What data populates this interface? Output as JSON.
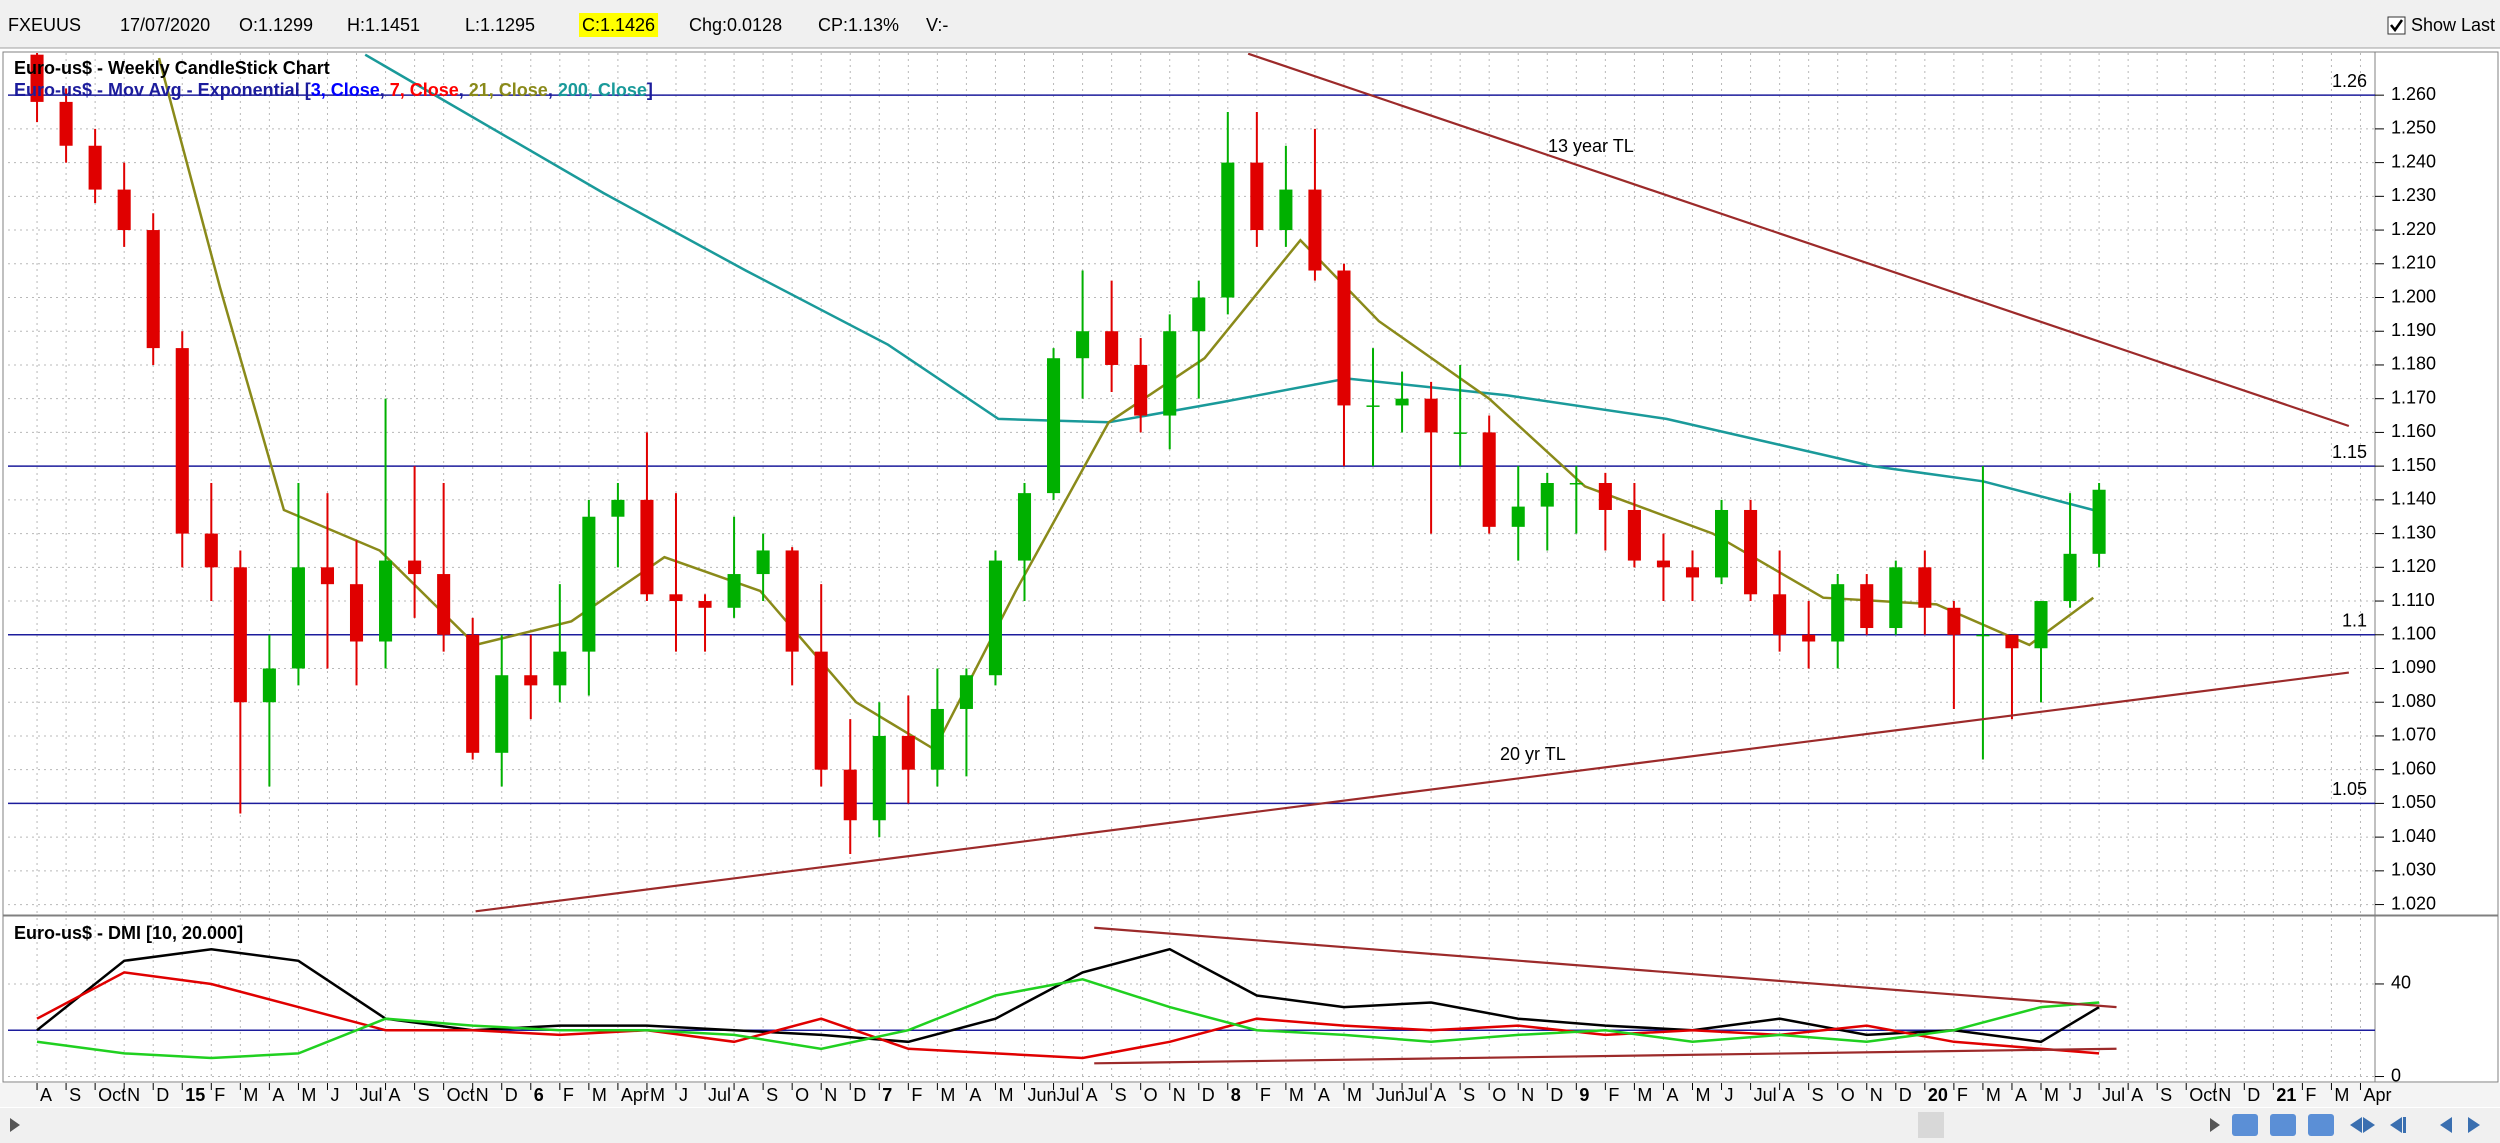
{
  "toolbar": {
    "symbol": "FXEUUS",
    "date": "17/07/2020",
    "open": "O:1.1299",
    "high": "H:1.1451",
    "low": "L:1.1295",
    "close": "C:1.1426",
    "change": "Chg:0.0128",
    "change_pct": "CP:1.13%",
    "volume": "V:-",
    "show_last": "Show Last"
  },
  "chart_data": [
    {
      "type": "candlestick",
      "title": "Euro-us$ - Weekly CandleStick Chart",
      "indicator_legend": [
        {
          "text": "Euro-us$ - Mov Avg - Exponential [",
          "color": "#1c1c9c"
        },
        {
          "text": "3, Close",
          "color": "#0000ff"
        },
        {
          "text": ", ",
          "color": "#1c1c9c"
        },
        {
          "text": "7, Close",
          "color": "#ff0000"
        },
        {
          "text": ", ",
          "color": "#1c1c9c"
        },
        {
          "text": "21, Close",
          "color": "#8a8a1a"
        },
        {
          "text": ", ",
          "color": "#1c1c9c"
        },
        {
          "text": "200, Close",
          "color": "#1a9a9a"
        },
        {
          "text": "]",
          "color": "#1c1c9c"
        }
      ],
      "xlim": [
        -1,
        80.5
      ],
      "ylim": [
        1.0175,
        1.2725
      ],
      "yticks": [
        {
          "value": 1.02,
          "label": "1.020"
        },
        {
          "value": 1.03,
          "label": "1.030"
        },
        {
          "value": 1.04,
          "label": "1.040"
        },
        {
          "value": 1.05,
          "label": "1.050"
        },
        {
          "value": 1.06,
          "label": "1.060"
        },
        {
          "value": 1.07,
          "label": "1.070"
        },
        {
          "value": 1.08,
          "label": "1.080"
        },
        {
          "value": 1.09,
          "label": "1.090"
        },
        {
          "value": 1.1,
          "label": "1.100"
        },
        {
          "value": 1.11,
          "label": "1.110"
        },
        {
          "value": 1.12,
          "label": "1.120"
        },
        {
          "value": 1.13,
          "label": "1.130"
        },
        {
          "value": 1.14,
          "label": "1.140"
        },
        {
          "value": 1.15,
          "label": "1.150"
        },
        {
          "value": 1.16,
          "label": "1.160"
        },
        {
          "value": 1.17,
          "label": "1.170"
        },
        {
          "value": 1.18,
          "label": "1.180"
        },
        {
          "value": 1.19,
          "label": "1.190"
        },
        {
          "value": 1.2,
          "label": "1.200"
        },
        {
          "value": 1.21,
          "label": "1.210"
        },
        {
          "value": 1.22,
          "label": "1.220"
        },
        {
          "value": 1.23,
          "label": "1.230"
        },
        {
          "value": 1.24,
          "label": "1.240"
        },
        {
          "value": 1.25,
          "label": "1.250"
        },
        {
          "value": 1.26,
          "label": "1.260"
        }
      ],
      "grid": true,
      "up_color": "#00b000",
      "down_color": "#e00000",
      "x": [
        0,
        1,
        2,
        3,
        4,
        5,
        6,
        7,
        8,
        9,
        10,
        11,
        12,
        13,
        14,
        15,
        16,
        17,
        18,
        19,
        20,
        21,
        22,
        23,
        24,
        25,
        26,
        27,
        28,
        29,
        30,
        31,
        32,
        33,
        34,
        35,
        36,
        37,
        38,
        39,
        40,
        41,
        42,
        43,
        44,
        45,
        46,
        47,
        48,
        49,
        50,
        51,
        52,
        53,
        54,
        55,
        56,
        57,
        58,
        59,
        60,
        61,
        62,
        63,
        64,
        65,
        66,
        67,
        68,
        69,
        70,
        71
      ],
      "open": [
        1.272,
        1.258,
        1.245,
        1.232,
        1.22,
        1.185,
        1.13,
        1.12,
        1.08,
        1.09,
        1.12,
        1.115,
        1.098,
        1.122,
        1.118,
        1.1,
        1.065,
        1.088,
        1.085,
        1.095,
        1.135,
        1.14,
        1.112,
        1.11,
        1.108,
        1.118,
        1.125,
        1.095,
        1.06,
        1.045,
        1.07,
        1.06,
        1.078,
        1.088,
        1.122,
        1.142,
        1.182,
        1.19,
        1.18,
        1.165,
        1.19,
        1.2,
        1.24,
        1.22,
        1.232,
        1.208,
        1.168,
        1.168,
        1.17,
        1.16,
        1.16,
        1.132,
        1.138,
        1.145,
        1.145,
        1.137,
        1.122,
        1.12,
        1.117,
        1.137,
        1.112,
        1.1,
        1.098,
        1.115,
        1.102,
        1.12,
        1.108,
        1.1,
        1.1,
        1.096,
        1.11,
        1.124
      ],
      "high": [
        1.28,
        1.262,
        1.25,
        1.24,
        1.225,
        1.19,
        1.145,
        1.125,
        1.1,
        1.145,
        1.142,
        1.128,
        1.17,
        1.15,
        1.145,
        1.105,
        1.1,
        1.1,
        1.115,
        1.14,
        1.145,
        1.16,
        1.142,
        1.112,
        1.135,
        1.13,
        1.126,
        1.115,
        1.075,
        1.08,
        1.082,
        1.09,
        1.09,
        1.125,
        1.145,
        1.185,
        1.208,
        1.205,
        1.188,
        1.195,
        1.205,
        1.255,
        1.255,
        1.245,
        1.25,
        1.21,
        1.185,
        1.178,
        1.175,
        1.18,
        1.165,
        1.15,
        1.148,
        1.15,
        1.148,
        1.145,
        1.13,
        1.125,
        1.14,
        1.14,
        1.125,
        1.11,
        1.118,
        1.118,
        1.122,
        1.125,
        1.11,
        1.15,
        1.1,
        1.11,
        1.142,
        1.145
      ],
      "low": [
        1.252,
        1.24,
        1.228,
        1.215,
        1.18,
        1.12,
        1.11,
        1.047,
        1.055,
        1.085,
        1.09,
        1.085,
        1.09,
        1.105,
        1.095,
        1.063,
        1.055,
        1.075,
        1.08,
        1.082,
        1.12,
        1.11,
        1.095,
        1.095,
        1.105,
        1.11,
        1.085,
        1.055,
        1.035,
        1.04,
        1.05,
        1.055,
        1.058,
        1.085,
        1.11,
        1.14,
        1.17,
        1.172,
        1.16,
        1.155,
        1.17,
        1.195,
        1.215,
        1.215,
        1.205,
        1.15,
        1.15,
        1.16,
        1.13,
        1.15,
        1.13,
        1.122,
        1.125,
        1.13,
        1.125,
        1.12,
        1.11,
        1.11,
        1.115,
        1.11,
        1.095,
        1.09,
        1.09,
        1.1,
        1.1,
        1.1,
        1.078,
        1.063,
        1.075,
        1.08,
        1.108,
        1.12
      ],
      "close": [
        1.258,
        1.245,
        1.232,
        1.22,
        1.185,
        1.13,
        1.12,
        1.08,
        1.09,
        1.12,
        1.115,
        1.098,
        1.122,
        1.118,
        1.1,
        1.065,
        1.088,
        1.085,
        1.095,
        1.135,
        1.14,
        1.112,
        1.11,
        1.108,
        1.118,
        1.125,
        1.095,
        1.06,
        1.045,
        1.07,
        1.06,
        1.078,
        1.088,
        1.122,
        1.142,
        1.182,
        1.19,
        1.18,
        1.165,
        1.19,
        1.2,
        1.24,
        1.22,
        1.232,
        1.208,
        1.168,
        1.168,
        1.17,
        1.16,
        1.16,
        1.132,
        1.138,
        1.145,
        1.145,
        1.137,
        1.122,
        1.12,
        1.117,
        1.137,
        1.112,
        1.1,
        1.098,
        1.115,
        1.102,
        1.12,
        1.108,
        1.1,
        1.1,
        1.096,
        1.11,
        1.124,
        1.143
      ],
      "series": [
        {
          "color": "#1a9a9a",
          "x": [
            11.3,
            19.5,
            24.4,
            29.3,
            33.1,
            36.9,
            40.8,
            45.1,
            50.6,
            56.1,
            63.2,
            67,
            70.8
          ],
          "values": [
            1.272,
            1.231,
            1.208,
            1.186,
            1.164,
            1.163,
            1.169,
            1.176,
            1.171,
            1.164,
            1.15,
            1.1455,
            1.137
          ]
        },
        {
          "color": "#8a8a1a",
          "x": [
            4.2,
            6.3,
            8.5,
            11.8,
            15.1,
            18.4,
            21.6,
            24.9,
            28.2,
            30.9,
            33.7,
            36.9,
            40.2,
            43.5,
            46.2,
            50,
            53.3,
            57.7,
            61.5,
            65.4,
            68.6,
            70.8
          ],
          "values": [
            1.271,
            1.203,
            1.137,
            1.125,
            1.097,
            1.104,
            1.123,
            1.113,
            1.08,
            1.066,
            1.113,
            1.163,
            1.182,
            1.217,
            1.193,
            1.17,
            1.144,
            1.13,
            1.111,
            1.109,
            1.097,
            1.111
          ]
        }
      ],
      "levels": [
        {
          "value": 1.26,
          "label": "1.26"
        },
        {
          "value": 1.15,
          "label": "1.15"
        },
        {
          "value": 1.1,
          "label": "1.1"
        },
        {
          "value": 1.05,
          "label": "1.05"
        }
      ],
      "level_color": "#1c1c9c",
      "trendlines": [
        {
          "color": "#9c2a2a",
          "x": [
            41.7,
            79.6
          ],
          "values": [
            1.2723,
            1.1619
          ]
        },
        {
          "color": "#9c2a2a",
          "x": [
            15.1,
            79.6
          ],
          "values": [
            1.018,
            1.0888
          ]
        }
      ],
      "annotations": [
        "13 year TL",
        "20 yr TL"
      ]
    },
    {
      "type": "line",
      "title": "Euro-us$ - DMI [10, 20.000]",
      "xlim": [
        -1,
        80.5
      ],
      "xticks": [
        {
          "value": 0,
          "label": "A"
        },
        {
          "value": 1,
          "label": "S"
        },
        {
          "value": 2,
          "label": "Oct"
        },
        {
          "value": 3,
          "label": "N"
        },
        {
          "value": 4,
          "label": "D"
        },
        {
          "value": 5,
          "label": "15"
        },
        {
          "value": 6,
          "label": "F"
        },
        {
          "value": 7,
          "label": "M"
        },
        {
          "value": 8,
          "label": "A"
        },
        {
          "value": 9,
          "label": "M"
        },
        {
          "value": 10,
          "label": "J"
        },
        {
          "value": 11,
          "label": "Jul"
        },
        {
          "value": 12,
          "label": "A"
        },
        {
          "value": 13,
          "label": "S"
        },
        {
          "value": 14,
          "label": "Oct"
        },
        {
          "value": 15,
          "label": "N"
        },
        {
          "value": 16,
          "label": "D"
        },
        {
          "value": 17,
          "label": "6"
        },
        {
          "value": 18,
          "label": "F"
        },
        {
          "value": 19,
          "label": "M"
        },
        {
          "value": 20,
          "label": "Apr"
        },
        {
          "value": 21,
          "label": "M"
        },
        {
          "value": 22,
          "label": "J"
        },
        {
          "value": 23,
          "label": "Jul"
        },
        {
          "value": 24,
          "label": "A"
        },
        {
          "value": 25,
          "label": "S"
        },
        {
          "value": 26,
          "label": "O"
        },
        {
          "value": 27,
          "label": "N"
        },
        {
          "value": 28,
          "label": "D"
        },
        {
          "value": 29,
          "label": "7"
        },
        {
          "value": 30,
          "label": "F"
        },
        {
          "value": 31,
          "label": "M"
        },
        {
          "value": 32,
          "label": "A"
        },
        {
          "value": 33,
          "label": "M"
        },
        {
          "value": 34,
          "label": "Jun"
        },
        {
          "value": 35,
          "label": "Jul"
        },
        {
          "value": 36,
          "label": "A"
        },
        {
          "value": 37,
          "label": "S"
        },
        {
          "value": 38,
          "label": "O"
        },
        {
          "value": 39,
          "label": "N"
        },
        {
          "value": 40,
          "label": "D"
        },
        {
          "value": 41,
          "label": "8"
        },
        {
          "value": 42,
          "label": "F"
        },
        {
          "value": 43,
          "label": "M"
        },
        {
          "value": 44,
          "label": "A"
        },
        {
          "value": 45,
          "label": "M"
        },
        {
          "value": 46,
          "label": "Jun"
        },
        {
          "value": 47,
          "label": "Jul"
        },
        {
          "value": 48,
          "label": "A"
        },
        {
          "value": 49,
          "label": "S"
        },
        {
          "value": 50,
          "label": "O"
        },
        {
          "value": 51,
          "label": "N"
        },
        {
          "value": 52,
          "label": "D"
        },
        {
          "value": 53,
          "label": "9"
        },
        {
          "value": 54,
          "label": "F"
        },
        {
          "value": 55,
          "label": "M"
        },
        {
          "value": 56,
          "label": "A"
        },
        {
          "value": 57,
          "label": "M"
        },
        {
          "value": 58,
          "label": "J"
        },
        {
          "value": 59,
          "label": "Jul"
        },
        {
          "value": 60,
          "label": "A"
        },
        {
          "value": 61,
          "label": "S"
        },
        {
          "value": 62,
          "label": "O"
        },
        {
          "value": 63,
          "label": "N"
        },
        {
          "value": 64,
          "label": "D"
        },
        {
          "value": 65,
          "label": "20"
        },
        {
          "value": 66,
          "label": "F"
        },
        {
          "value": 67,
          "label": "M"
        },
        {
          "value": 68,
          "label": "A"
        },
        {
          "value": 69,
          "label": "M"
        },
        {
          "value": 70,
          "label": "J"
        },
        {
          "value": 71,
          "label": "Jul"
        },
        {
          "value": 72,
          "label": "A"
        },
        {
          "value": 73,
          "label": "S"
        },
        {
          "value": 74,
          "label": "Oct"
        },
        {
          "value": 75,
          "label": "N"
        },
        {
          "value": 76,
          "label": "D"
        },
        {
          "value": 77,
          "label": "21"
        },
        {
          "value": 78,
          "label": "F"
        },
        {
          "value": 79,
          "label": "M"
        },
        {
          "value": 80,
          "label": "Apr"
        }
      ],
      "ylim": [
        -1.5,
        68.5
      ],
      "yticks": [
        0,
        40
      ],
      "grid": true,
      "series": [
        {
          "color": "#000000",
          "x": [
            0,
            3,
            6,
            9,
            12,
            15,
            18,
            21,
            24,
            27,
            30,
            33,
            36,
            39,
            42,
            45,
            48,
            51,
            54,
            57,
            60,
            63,
            66,
            69,
            71
          ],
          "values": [
            20,
            50,
            55,
            50,
            25,
            20,
            22,
            22,
            20,
            18,
            15,
            25,
            45,
            55,
            35,
            30,
            32,
            25,
            22,
            20,
            25,
            18,
            20,
            15,
            30
          ]
        },
        {
          "color": "#e00000",
          "x": [
            0,
            3,
            6,
            9,
            12,
            15,
            18,
            21,
            24,
            27,
            30,
            33,
            36,
            39,
            42,
            45,
            48,
            51,
            54,
            57,
            60,
            63,
            66,
            69,
            71
          ],
          "values": [
            25,
            45,
            40,
            30,
            20,
            20,
            18,
            20,
            15,
            25,
            12,
            10,
            8,
            15,
            25,
            22,
            20,
            22,
            18,
            20,
            18,
            22,
            15,
            12,
            10
          ]
        },
        {
          "color": "#20d020",
          "x": [
            0,
            3,
            6,
            9,
            12,
            15,
            18,
            21,
            24,
            27,
            30,
            33,
            36,
            39,
            42,
            45,
            48,
            51,
            54,
            57,
            60,
            63,
            66,
            69,
            71
          ],
          "values": [
            15,
            10,
            8,
            10,
            25,
            22,
            20,
            20,
            18,
            12,
            20,
            35,
            42,
            30,
            20,
            18,
            15,
            18,
            20,
            15,
            18,
            15,
            20,
            30,
            32
          ]
        }
      ],
      "levels": [
        {
          "value": 20
        }
      ],
      "level_color": "#1c1c9c",
      "trendlines": [
        {
          "color": "#9c2a2a",
          "x": [
            36.4,
            71.6
          ],
          "values": [
            64.3,
            30
          ]
        },
        {
          "color": "#9c2a2a",
          "x": [
            36.4,
            71.6
          ],
          "values": [
            5.7,
            12
          ]
        }
      ]
    }
  ]
}
